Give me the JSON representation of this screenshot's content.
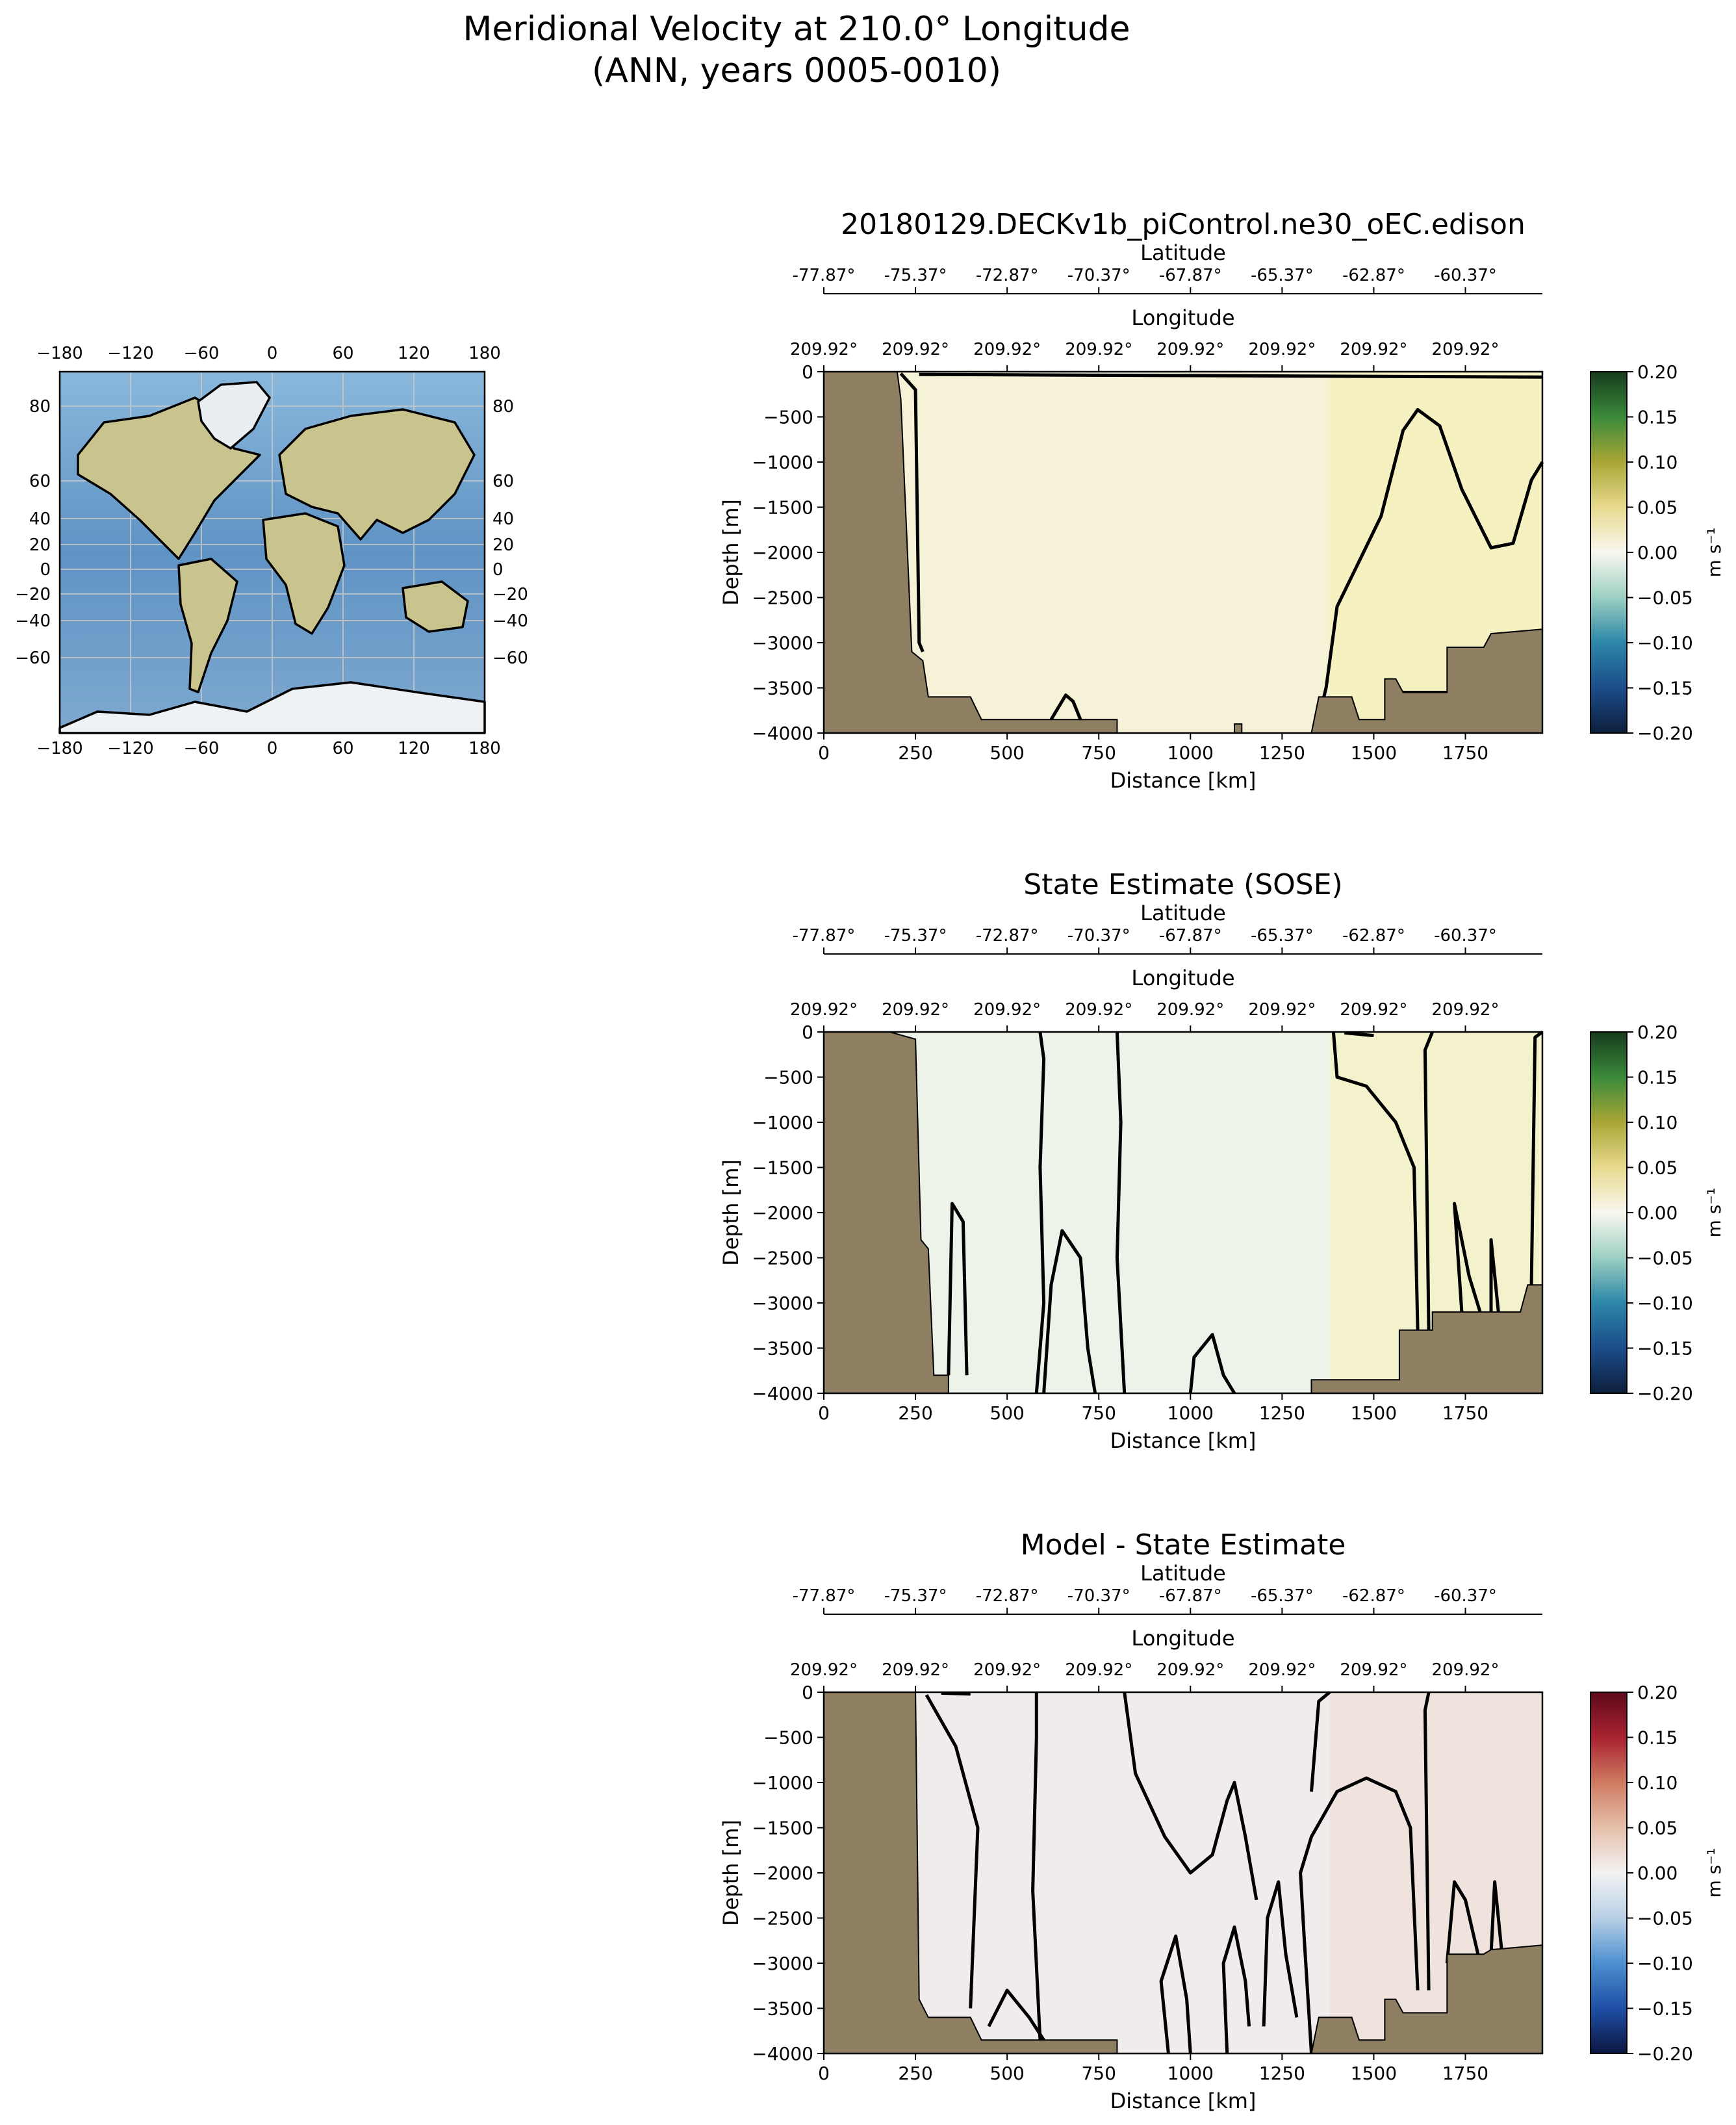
{
  "figure": {
    "title_line1": "Meridional Velocity at 210.0° Longitude",
    "title_line2": "(ANN, years 0005-0010)"
  },
  "colors": {
    "land": "#8e7f63",
    "contour": "#000000",
    "ocean": "#6f9fcf"
  },
  "map": {
    "x_ticks": [
      "−180",
      "−120",
      "−60",
      "0",
      "60",
      "120",
      "180"
    ],
    "y_ticks_left": [
      "80",
      "60",
      "40",
      "20",
      "0",
      "−20",
      "−40",
      "−60"
    ],
    "y_ticks_right": [
      "80",
      "60",
      "40",
      "20",
      "0",
      "−20",
      "−40",
      "−60"
    ]
  },
  "chart_data": [
    {
      "type": "heatmap",
      "title": "20180129.DECKv1b_piControl.ne30_oEC.edison",
      "xlabel": "Distance [km]",
      "ylabel": "Depth [m]",
      "xlim": [
        0,
        1960
      ],
      "ylim": [
        -4000,
        0
      ],
      "x_ticks": [
        0,
        250,
        500,
        750,
        1000,
        1250,
        1500,
        1750
      ],
      "y_ticks": [
        0,
        -500,
        -1000,
        -1500,
        -2000,
        -2500,
        -3000,
        -3500,
        -4000
      ],
      "lat_axis_label": "Latitude",
      "lat_ticks": [
        "-77.87°",
        "-75.37°",
        "-72.87°",
        "-70.37°",
        "-67.87°",
        "-65.37°",
        "-62.87°",
        "-60.37°"
      ],
      "lon_axis_label": "Longitude",
      "lon_ticks": [
        "209.92°",
        "209.92°",
        "209.92°",
        "209.92°",
        "209.92°",
        "209.92°",
        "209.92°",
        "209.92°"
      ],
      "colorbar": {
        "label": "m s⁻¹",
        "ticks": [
          "0.20",
          "0.15",
          "0.10",
          "0.05",
          "0.00",
          "−0.05",
          "−0.10",
          "−0.15",
          "−0.20"
        ],
        "colors": [
          "#0d1f3c",
          "#1b4c8a",
          "#2c86a8",
          "#9ccfc2",
          "#f8f7ef",
          "#e8d98e",
          "#a9a636",
          "#3a8a3a",
          "#173a1c"
        ],
        "range": [
          -0.2,
          0.2
        ]
      },
      "field_tint": "#f5f2d8",
      "highlight_tint": "#f6f0b0",
      "bathymetry": [
        [
          0,
          0
        ],
        [
          200,
          0
        ],
        [
          210,
          -300
        ],
        [
          240,
          -3100
        ],
        [
          270,
          -3200
        ],
        [
          285,
          -3600
        ],
        [
          400,
          -3600
        ],
        [
          430,
          -3850
        ],
        [
          800,
          -3850
        ],
        [
          800,
          -4000
        ],
        [
          1120,
          -4000
        ],
        [
          1120,
          -3900
        ],
        [
          1140,
          -3900
        ],
        [
          1140,
          -4000
        ],
        [
          1330,
          -4000
        ],
        [
          1350,
          -3600
        ],
        [
          1440,
          -3600
        ],
        [
          1460,
          -3850
        ],
        [
          1530,
          -3850
        ],
        [
          1530,
          -3400
        ],
        [
          1560,
          -3400
        ],
        [
          1580,
          -3550
        ],
        [
          1700,
          -3550
        ],
        [
          1700,
          -3050
        ],
        [
          1800,
          -3050
        ],
        [
          1820,
          -2900
        ],
        [
          1960,
          -2850
        ]
      ]
    },
    {
      "type": "heatmap",
      "title": "State Estimate (SOSE)",
      "xlabel": "Distance [km]",
      "ylabel": "Depth [m]",
      "xlim": [
        0,
        1960
      ],
      "ylim": [
        -4000,
        0
      ],
      "x_ticks": [
        0,
        250,
        500,
        750,
        1000,
        1250,
        1500,
        1750
      ],
      "y_ticks": [
        0,
        -500,
        -1000,
        -1500,
        -2000,
        -2500,
        -3000,
        -3500,
        -4000
      ],
      "lat_axis_label": "Latitude",
      "lat_ticks": [
        "-77.87°",
        "-75.37°",
        "-72.87°",
        "-70.37°",
        "-67.87°",
        "-65.37°",
        "-62.87°",
        "-60.37°"
      ],
      "lon_axis_label": "Longitude",
      "lon_ticks": [
        "209.92°",
        "209.92°",
        "209.92°",
        "209.92°",
        "209.92°",
        "209.92°",
        "209.92°",
        "209.92°"
      ],
      "colorbar": {
        "label": "m s⁻¹",
        "ticks": [
          "0.20",
          "0.15",
          "0.10",
          "0.05",
          "0.00",
          "−0.05",
          "−0.10",
          "−0.15",
          "−0.20"
        ],
        "colors": [
          "#0d1f3c",
          "#1b4c8a",
          "#2c86a8",
          "#9ccfc2",
          "#f8f7ef",
          "#e8d98e",
          "#a9a636",
          "#3a8a3a",
          "#173a1c"
        ],
        "range": [
          -0.2,
          0.2
        ]
      },
      "field_tint": "#eef3ea",
      "highlight_tint": "#f7f1b8",
      "bathymetry": [
        [
          0,
          0
        ],
        [
          180,
          0
        ],
        [
          250,
          -80
        ],
        [
          265,
          -2300
        ],
        [
          285,
          -2400
        ],
        [
          300,
          -3800
        ],
        [
          340,
          -3800
        ],
        [
          340,
          -4000
        ],
        [
          1330,
          -4000
        ],
        [
          1330,
          -3850
        ],
        [
          1570,
          -3850
        ],
        [
          1570,
          -3300
        ],
        [
          1660,
          -3300
        ],
        [
          1660,
          -3100
        ],
        [
          1900,
          -3100
        ],
        [
          1920,
          -2800
        ],
        [
          1960,
          -2800
        ]
      ]
    },
    {
      "type": "heatmap",
      "title": "Model - State Estimate",
      "xlabel": "Distance [km]",
      "ylabel": "Depth [m]",
      "xlim": [
        0,
        1960
      ],
      "ylim": [
        -4000,
        0
      ],
      "x_ticks": [
        0,
        250,
        500,
        750,
        1000,
        1250,
        1500,
        1750
      ],
      "y_ticks": [
        0,
        -500,
        -1000,
        -1500,
        -2000,
        -2500,
        -3000,
        -3500,
        -4000
      ],
      "lat_axis_label": "Latitude",
      "lat_ticks": [
        "-77.87°",
        "-75.37°",
        "-72.87°",
        "-70.37°",
        "-67.87°",
        "-65.37°",
        "-62.87°",
        "-60.37°"
      ],
      "lon_axis_label": "Longitude",
      "lon_ticks": [
        "209.92°",
        "209.92°",
        "209.92°",
        "209.92°",
        "209.92°",
        "209.92°",
        "209.92°",
        "209.92°"
      ],
      "colorbar": {
        "label": "m s⁻¹",
        "ticks": [
          "0.20",
          "0.15",
          "0.10",
          "0.05",
          "0.00",
          "−0.05",
          "−0.10",
          "−0.15",
          "−0.20"
        ],
        "colors": [
          "#0b1640",
          "#1f4fa6",
          "#4d8fcf",
          "#b9d0e6",
          "#f2f2f2",
          "#e6c0ab",
          "#cf7b62",
          "#a8222f",
          "#5e0a1b"
        ],
        "range": [
          -0.2,
          0.2
        ]
      },
      "field_tint": "#f1ecec",
      "highlight_tint": "#f0dcd3",
      "bathymetry": [
        [
          0,
          0
        ],
        [
          250,
          0
        ],
        [
          260,
          -3400
        ],
        [
          285,
          -3600
        ],
        [
          400,
          -3600
        ],
        [
          430,
          -3850
        ],
        [
          800,
          -3850
        ],
        [
          800,
          -4000
        ],
        [
          1330,
          -4000
        ],
        [
          1350,
          -3600
        ],
        [
          1440,
          -3600
        ],
        [
          1460,
          -3850
        ],
        [
          1530,
          -3850
        ],
        [
          1530,
          -3400
        ],
        [
          1560,
          -3400
        ],
        [
          1580,
          -3550
        ],
        [
          1700,
          -3550
        ],
        [
          1700,
          -2900
        ],
        [
          1800,
          -2900
        ],
        [
          1820,
          -2850
        ],
        [
          1960,
          -2800
        ]
      ]
    }
  ]
}
